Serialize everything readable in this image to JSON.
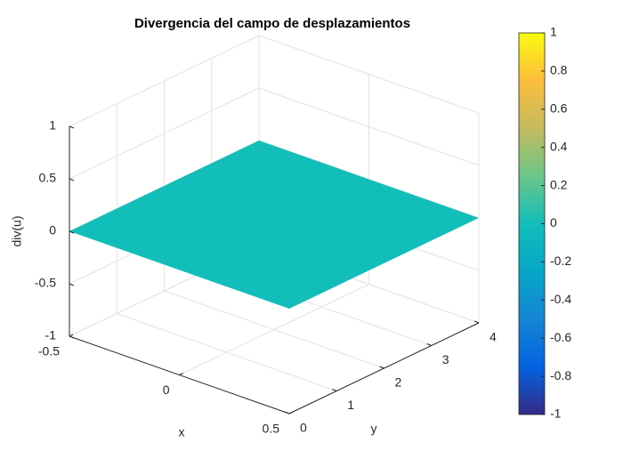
{
  "chart_data": {
    "type": "surface",
    "title": "Divergencia del campo de desplazamientos",
    "x_label": "x",
    "y_label": "y",
    "z_label": "div(u)",
    "x": [
      -0.5,
      0.5
    ],
    "y": [
      0,
      4
    ],
    "z": [
      [
        0,
        0
      ],
      [
        0,
        0
      ]
    ],
    "xlim": [
      -0.5,
      0.5
    ],
    "xticks": [
      -0.5,
      0,
      0.5
    ],
    "ylim": [
      0,
      4
    ],
    "yticks": [
      0,
      1,
      2,
      3,
      4
    ],
    "zlim": [
      -1,
      1
    ],
    "zticks": [
      -1,
      -0.5,
      0,
      0.5,
      1
    ],
    "grid": true,
    "colormap": [
      "#352a87",
      "#0363e1",
      "#1485d4",
      "#06a7c6",
      "#12beb9",
      "#6bc689",
      "#c4bb5e",
      "#fdbd3c",
      "#f9fb0e"
    ],
    "clim": [
      -1,
      1
    ],
    "cticks": [
      -1,
      -0.8,
      -0.6,
      -0.4,
      -0.2,
      0,
      0.2,
      0.4,
      0.6,
      0.8,
      1
    ]
  }
}
